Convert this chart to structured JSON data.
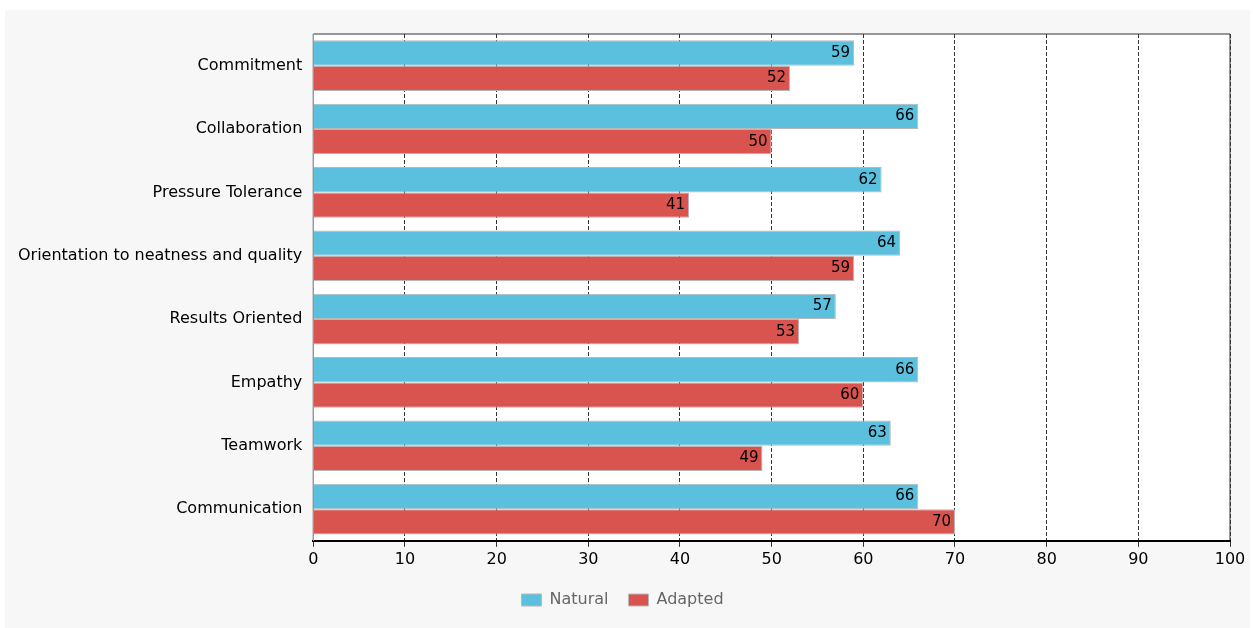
{
  "chart_data": {
    "type": "bar",
    "orientation": "horizontal",
    "categories": [
      "Commitment",
      "Collaboration",
      "Pressure Tolerance",
      "Orientation to neatness and quality",
      "Results Oriented",
      "Empathy",
      "Teamwork",
      "Communication"
    ],
    "series": [
      {
        "name": "Natural",
        "color": "#5bc0de",
        "values": [
          59,
          66,
          62,
          64,
          57,
          66,
          63,
          66
        ]
      },
      {
        "name": "Adapted",
        "color": "#d9534f",
        "values": [
          52,
          50,
          41,
          59,
          53,
          60,
          49,
          70
        ]
      }
    ],
    "xlim": [
      0,
      100
    ],
    "xticks": [
      0,
      10,
      20,
      30,
      40,
      50,
      60,
      70,
      80,
      90,
      100
    ],
    "grid": "x",
    "legend": "bottom",
    "data_labels": true
  }
}
